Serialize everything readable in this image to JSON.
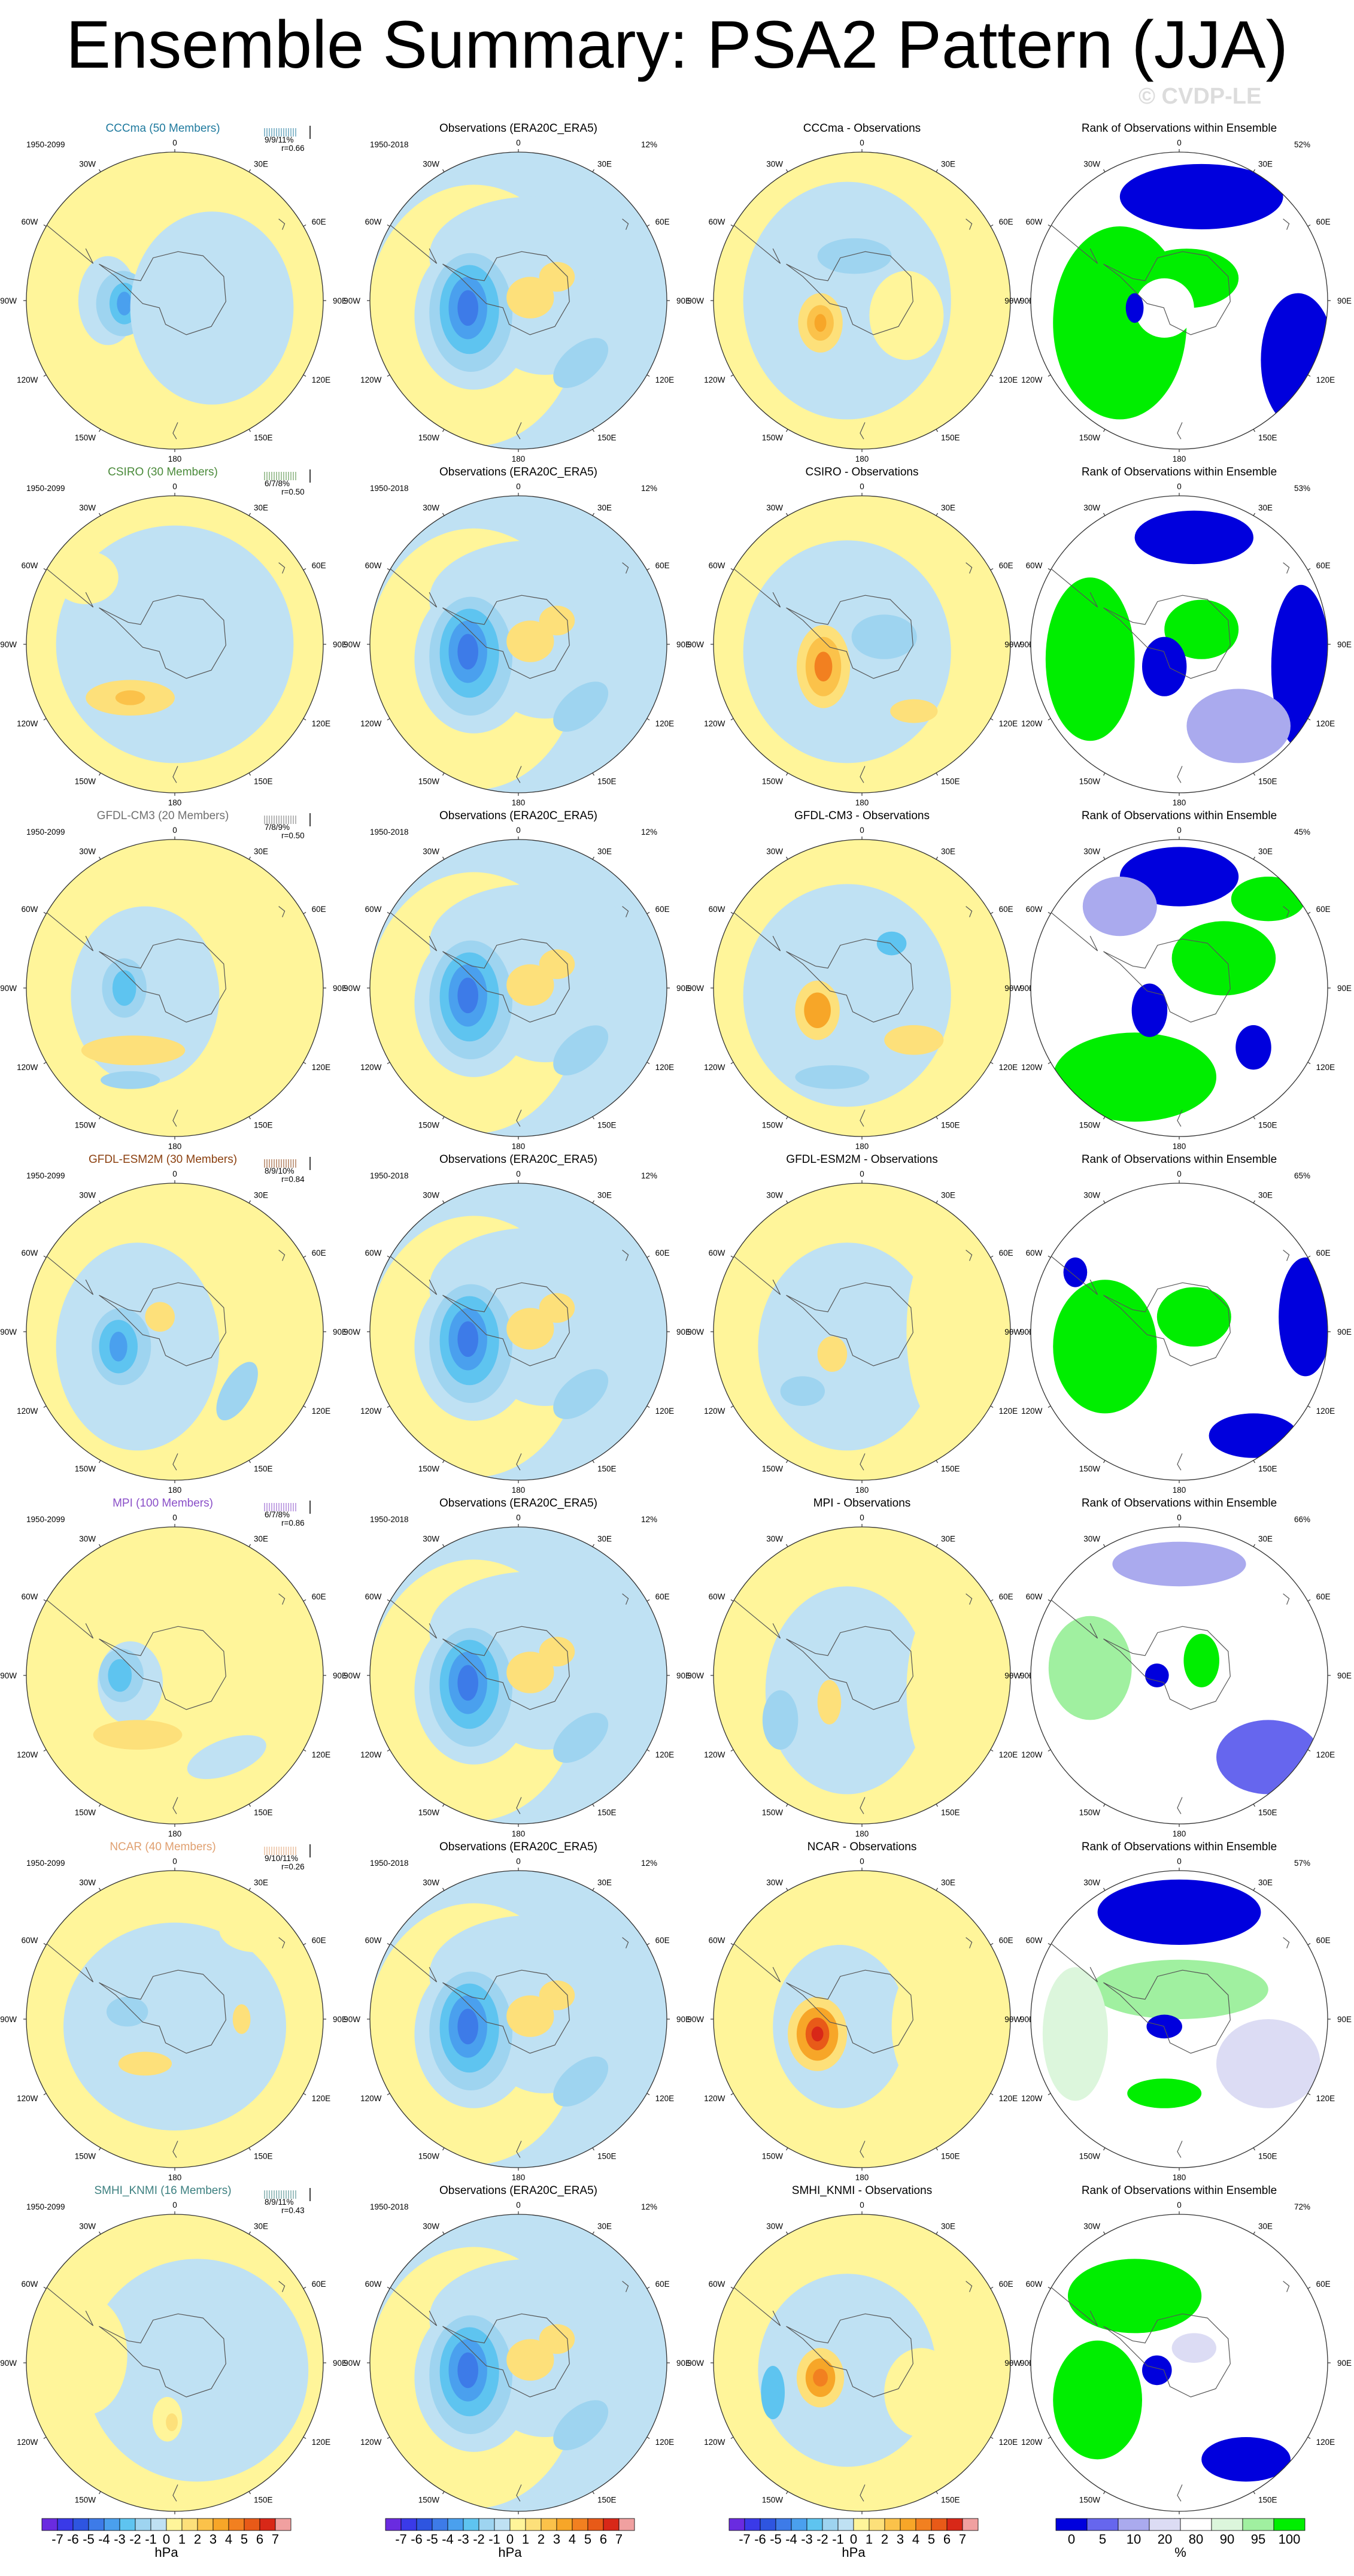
{
  "title": "Ensemble Summary: PSA2 Pattern (JJA)",
  "watermark": "© CVDP-LE",
  "column_titles": {
    "observations": "Observations (ERA20C_ERA5)",
    "rank": "Rank of Observations within Ensemble"
  },
  "periods": {
    "model": "1950-2099",
    "observations": "1950-2018"
  },
  "obs_variance": "12%",
  "map_labels": {
    "top": "0",
    "upper_right": "30E",
    "right_upper": "60E",
    "right": "90E",
    "right_lower": "120E",
    "lower_right": "150E",
    "bottom": "180",
    "lower_left": "150W",
    "left_lower": "120W",
    "left": "90W",
    "left_upper": "60W",
    "upper_left": "30W"
  },
  "models": [
    {
      "name": "CCCma",
      "title": "CCCma (50 Members)",
      "color": "#1f7a9e",
      "diff_title": "CCCma - Observations",
      "variance": "9/9/11%",
      "r": "r=0.66",
      "rank_pct": "52%"
    },
    {
      "name": "CSIRO",
      "title": "CSIRO (30 Members)",
      "color": "#4a8a3a",
      "diff_title": "CSIRO - Observations",
      "variance": "6/7/8%",
      "r": "r=0.50",
      "rank_pct": "53%"
    },
    {
      "name": "GFDL-CM3",
      "title": "GFDL-CM3 (20 Members)",
      "color": "#707070",
      "diff_title": "GFDL-CM3 - Observations",
      "variance": "7/8/9%",
      "r": "r=0.50",
      "rank_pct": "45%"
    },
    {
      "name": "GFDL-ESM2M",
      "title": "GFDL-ESM2M (30 Members)",
      "color": "#8b4010",
      "diff_title": "GFDL-ESM2M - Observations",
      "variance": "8/9/10%",
      "r": "r=0.84",
      "rank_pct": "65%"
    },
    {
      "name": "MPI",
      "title": "MPI (100 Members)",
      "color": "#8a4fc8",
      "diff_title": "MPI - Observations",
      "variance": "6/7/8%",
      "r": "r=0.86",
      "rank_pct": "66%"
    },
    {
      "name": "NCAR",
      "title": "NCAR (40 Members)",
      "color": "#e0a070",
      "diff_title": "NCAR - Observations",
      "variance": "9/10/11%",
      "r": "r=0.26",
      "rank_pct": "57%"
    },
    {
      "name": "SMHI_KNMI",
      "title": "SMHI_KNMI (16 Members)",
      "color": "#3d8080",
      "diff_title": "SMHI_KNMI - Observations",
      "variance": "8/9/11%",
      "r": "r=0.43",
      "rank_pct": "72%"
    }
  ],
  "colorbar_hpa": {
    "ticks": [
      "-7",
      "-6",
      "-5",
      "-4",
      "-3",
      "-2",
      "-1",
      "0",
      "1",
      "2",
      "3",
      "4",
      "5",
      "6",
      "7"
    ],
    "unit": "hPa",
    "colors": [
      "#6a2be0",
      "#3a3ae8",
      "#2e55e0",
      "#3d7be8",
      "#4aa0ee",
      "#5ec4f0",
      "#9ed4f0",
      "#bfe1f3",
      "#fff59a",
      "#fde07a",
      "#fbc24a",
      "#f7a628",
      "#f28020",
      "#e85a18",
      "#d82818",
      "#f0a0a0"
    ]
  },
  "colorbar_rank": {
    "ticks": [
      "0",
      "5",
      "10",
      "20",
      "80",
      "90",
      "95",
      "100"
    ],
    "unit": "%",
    "colors": [
      "#0000dd",
      "#6666ee",
      "#aaaaee",
      "#dcdcf4",
      "#ffffff",
      "#dcf6dc",
      "#a0f0a0",
      "#00ee00"
    ]
  }
}
